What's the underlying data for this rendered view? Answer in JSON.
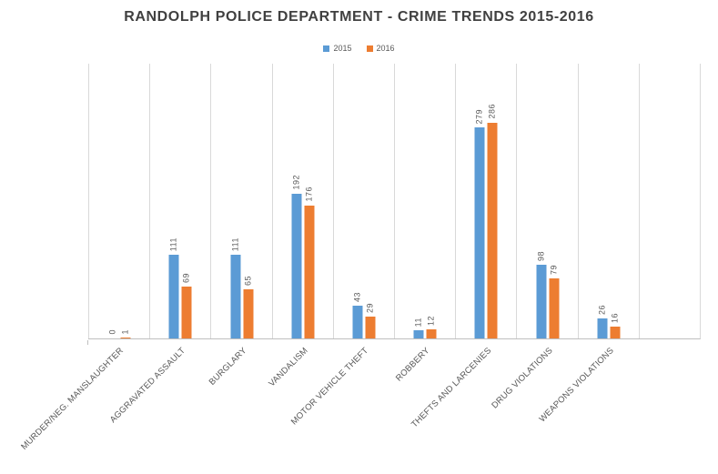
{
  "chart_data": {
    "type": "bar",
    "title": "RANDOLPH POLICE DEPARTMENT - CRIME TRENDS 2015-2016",
    "xlabel": "",
    "ylabel": "",
    "ylim": [
      0,
      300
    ],
    "grid": "vertical",
    "legend_position": "top",
    "data_labels": true,
    "categories": [
      "MURDER/NEG. MANSLAUGHTER",
      "AGGRAVATED ASSAULT",
      "BURGLARY",
      "VANDALISM",
      "MOTOR VEHICLE THEFT",
      "ROBBERY",
      "THEFTS AND LARCENIES",
      "DRUG VIOLATIONS",
      "WEAPONS VIOLATIONS"
    ],
    "series": [
      {
        "name": "2015",
        "color": "#5B9BD5",
        "values": [
          0,
          111,
          111,
          192,
          43,
          11,
          279,
          98,
          26
        ]
      },
      {
        "name": "2016",
        "color": "#ED7D31",
        "values": [
          1,
          69,
          65,
          176,
          29,
          12,
          286,
          79,
          16
        ]
      }
    ],
    "colors": {
      "title": "#404040",
      "labels": "#595959",
      "gridline": "#D9D9D9",
      "axis": "#BFBFBF"
    }
  }
}
